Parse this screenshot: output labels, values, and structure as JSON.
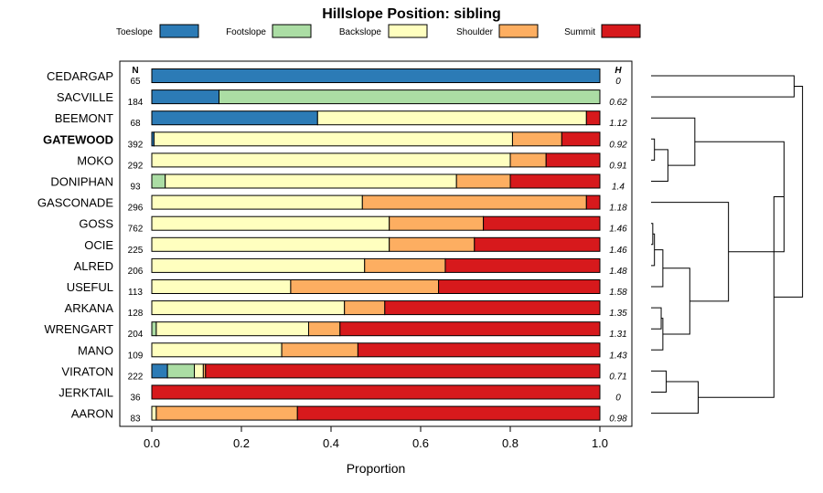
{
  "chart_data": {
    "type": "bar",
    "subtype": "stacked-horizontal-proportion",
    "title": "Hillslope Position: sibling",
    "xlabel": "Proportion",
    "xlim": [
      0,
      1
    ],
    "xticks": [
      "0.0",
      "0.2",
      "0.4",
      "0.6",
      "0.8",
      "1.0"
    ],
    "highlight": "GATEWOOD",
    "n_header": "N",
    "h_header": "H",
    "legend": [
      {
        "name": "Toeslope",
        "color": "#2C7BB6"
      },
      {
        "name": "Footslope",
        "color": "#ABDDA4"
      },
      {
        "name": "Backslope",
        "color": "#FFFFBF"
      },
      {
        "name": "Shoulder",
        "color": "#FDAE61"
      },
      {
        "name": "Summit",
        "color": "#D7191C"
      }
    ],
    "rows": [
      {
        "name": "CEDARGAP",
        "n": "65",
        "h": "0",
        "values": [
          1.0,
          0,
          0,
          0,
          0
        ]
      },
      {
        "name": "SACVILLE",
        "n": "184",
        "h": "0.62",
        "values": [
          0.15,
          0.85,
          0,
          0,
          0
        ]
      },
      {
        "name": "BEEMONT",
        "n": "68",
        "h": "1.12",
        "values": [
          0.37,
          0,
          0.6,
          0,
          0.03
        ]
      },
      {
        "name": "GATEWOOD",
        "n": "392",
        "h": "0.92",
        "values": [
          0.005,
          0,
          0.8,
          0.11,
          0.085
        ]
      },
      {
        "name": "MOKO",
        "n": "292",
        "h": "0.91",
        "values": [
          0,
          0,
          0.8,
          0.08,
          0.12
        ]
      },
      {
        "name": "DONIPHAN",
        "n": "93",
        "h": "1.4",
        "values": [
          0,
          0.03,
          0.65,
          0.12,
          0.2
        ]
      },
      {
        "name": "GASCONADE",
        "n": "296",
        "h": "1.18",
        "values": [
          0,
          0,
          0.47,
          0.5,
          0.03
        ]
      },
      {
        "name": "GOSS",
        "n": "762",
        "h": "1.46",
        "values": [
          0,
          0,
          0.53,
          0.21,
          0.26
        ]
      },
      {
        "name": "OCIE",
        "n": "225",
        "h": "1.46",
        "values": [
          0,
          0,
          0.53,
          0.19,
          0.28
        ]
      },
      {
        "name": "ALRED",
        "n": "206",
        "h": "1.48",
        "values": [
          0,
          0,
          0.475,
          0.18,
          0.345
        ]
      },
      {
        "name": "USEFUL",
        "n": "113",
        "h": "1.58",
        "values": [
          0,
          0,
          0.31,
          0.33,
          0.36
        ]
      },
      {
        "name": "ARKANA",
        "n": "128",
        "h": "1.35",
        "values": [
          0,
          0,
          0.43,
          0.09,
          0.48
        ]
      },
      {
        "name": "WRENGART",
        "n": "204",
        "h": "1.31",
        "values": [
          0,
          0.01,
          0.34,
          0.07,
          0.58
        ]
      },
      {
        "name": "MANO",
        "n": "109",
        "h": "1.43",
        "values": [
          0,
          0,
          0.29,
          0.17,
          0.54
        ]
      },
      {
        "name": "VIRATON",
        "n": "222",
        "h": "0.71",
        "values": [
          0.035,
          0.06,
          0.02,
          0.005,
          0.88
        ]
      },
      {
        "name": "JERKTAIL",
        "n": "36",
        "h": "0",
        "values": [
          0,
          0,
          0,
          0,
          1.0
        ]
      },
      {
        "name": "AARON",
        "n": "83",
        "h": "0.98",
        "values": [
          0,
          0,
          0.01,
          0.315,
          0.675
        ]
      }
    ],
    "dendrogram": [
      {
        "join": [
          "CEDARGAP",
          "SACVILLE"
        ],
        "height": 0.85
      },
      {
        "join": [
          "GATEWOOD",
          "MOKO"
        ],
        "height": 0.02
      },
      {
        "join": [
          "GATEWOOD+MOKO",
          "DONIPHAN"
        ],
        "height": 0.1
      },
      {
        "join": [
          "BEEMONT",
          "GATEWOOD+MOKO+DONIPHAN"
        ],
        "height": 0.26
      },
      {
        "join": [
          "GOSS",
          "OCIE"
        ],
        "height": 0.01
      },
      {
        "join": [
          "GOSS+OCIE",
          "ALRED"
        ],
        "height": 0.02
      },
      {
        "join": [
          "GOSS+OCIE+ALRED",
          "USEFUL"
        ],
        "height": 0.07
      },
      {
        "join": [
          "ARKANA",
          "WRENGART"
        ],
        "height": 0.06
      },
      {
        "join": [
          "ARKANA+WRENGART",
          "MANO"
        ],
        "height": 0.07
      },
      {
        "join": [
          "GOSS+OCIE+ALRED+USEFUL",
          "ARKANA+WRENGART+MANO"
        ],
        "height": 0.23
      },
      {
        "join": [
          "GASCONADE",
          "GOSS+OCIE+ALRED+USEFUL+ARKANA+WRENGART+MANO"
        ],
        "height": 0.46
      },
      {
        "join": [
          "BEEMONT+GATEWOOD+MOKO+DONIPHAN",
          "GASCONADE+..."
        ],
        "height": 0.79
      },
      {
        "join": [
          "VIRATON",
          "JERKTAIL"
        ],
        "height": 0.09
      },
      {
        "join": [
          "VIRATON+JERKTAIL",
          "AARON"
        ],
        "height": 0.28
      },
      {
        "join": [
          "BEEMONT+...+MANO",
          "VIRATON+JERKTAIL+AARON"
        ],
        "height": 0.73
      },
      {
        "join": [
          "CEDARGAP+SACVILLE",
          "all-rest"
        ],
        "height": 0.9
      }
    ]
  }
}
